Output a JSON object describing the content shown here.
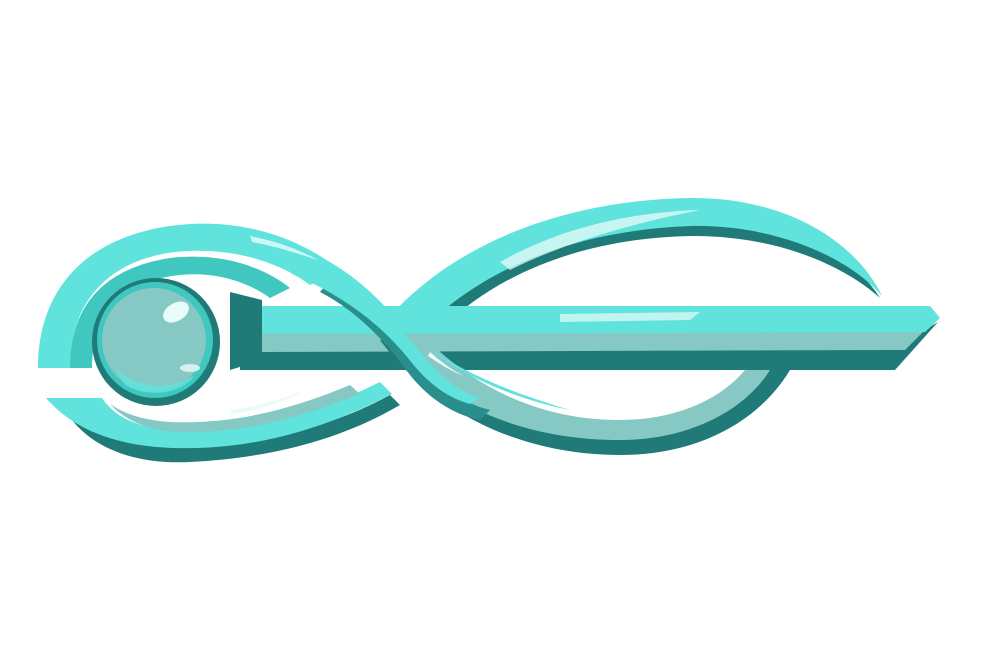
{
  "artwork": {
    "subject": "teal-infinity-ornament-icon",
    "colors": {
      "background": "#ffffff",
      "teal_light": "#5fe3dc",
      "teal_mid": "#3fc7c0",
      "teal_dark": "#1f7a78",
      "teal_shadow": "#2a8f8c",
      "teal_muted": "#86c9c4",
      "highlight": "#e9fbfa"
    }
  }
}
